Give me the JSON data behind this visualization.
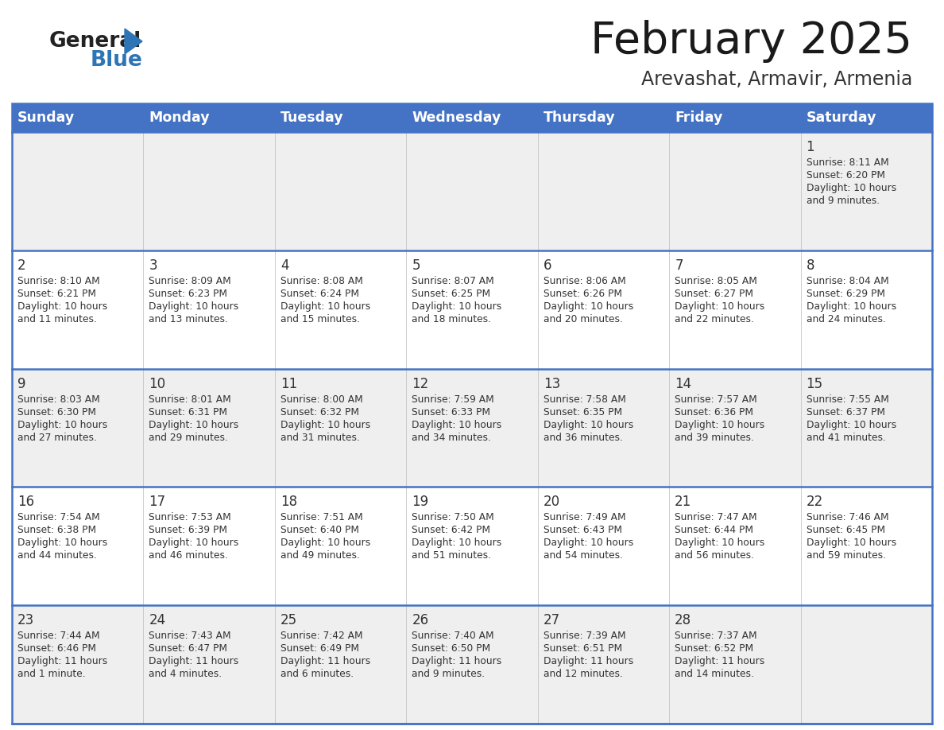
{
  "title": "February 2025",
  "subtitle": "Arevashat, Armavir, Armenia",
  "header_bg": "#4472C4",
  "header_text_color": "#FFFFFF",
  "day_names": [
    "Sunday",
    "Monday",
    "Tuesday",
    "Wednesday",
    "Thursday",
    "Friday",
    "Saturday"
  ],
  "row_bg_odd": "#EFEFEF",
  "row_bg_even": "#FFFFFF",
  "cell_text_color": "#333333",
  "day_num_color": "#333333",
  "border_color": "#4472C4",
  "logo_general_color": "#222222",
  "logo_blue_color": "#2E75B6",
  "calendar_data": [
    [
      null,
      null,
      null,
      null,
      null,
      null,
      {
        "day": 1,
        "sunrise": "8:11 AM",
        "sunset": "6:20 PM",
        "daylight": "10 hours\nand 9 minutes."
      }
    ],
    [
      {
        "day": 2,
        "sunrise": "8:10 AM",
        "sunset": "6:21 PM",
        "daylight": "10 hours\nand 11 minutes."
      },
      {
        "day": 3,
        "sunrise": "8:09 AM",
        "sunset": "6:23 PM",
        "daylight": "10 hours\nand 13 minutes."
      },
      {
        "day": 4,
        "sunrise": "8:08 AM",
        "sunset": "6:24 PM",
        "daylight": "10 hours\nand 15 minutes."
      },
      {
        "day": 5,
        "sunrise": "8:07 AM",
        "sunset": "6:25 PM",
        "daylight": "10 hours\nand 18 minutes."
      },
      {
        "day": 6,
        "sunrise": "8:06 AM",
        "sunset": "6:26 PM",
        "daylight": "10 hours\nand 20 minutes."
      },
      {
        "day": 7,
        "sunrise": "8:05 AM",
        "sunset": "6:27 PM",
        "daylight": "10 hours\nand 22 minutes."
      },
      {
        "day": 8,
        "sunrise": "8:04 AM",
        "sunset": "6:29 PM",
        "daylight": "10 hours\nand 24 minutes."
      }
    ],
    [
      {
        "day": 9,
        "sunrise": "8:03 AM",
        "sunset": "6:30 PM",
        "daylight": "10 hours\nand 27 minutes."
      },
      {
        "day": 10,
        "sunrise": "8:01 AM",
        "sunset": "6:31 PM",
        "daylight": "10 hours\nand 29 minutes."
      },
      {
        "day": 11,
        "sunrise": "8:00 AM",
        "sunset": "6:32 PM",
        "daylight": "10 hours\nand 31 minutes."
      },
      {
        "day": 12,
        "sunrise": "7:59 AM",
        "sunset": "6:33 PM",
        "daylight": "10 hours\nand 34 minutes."
      },
      {
        "day": 13,
        "sunrise": "7:58 AM",
        "sunset": "6:35 PM",
        "daylight": "10 hours\nand 36 minutes."
      },
      {
        "day": 14,
        "sunrise": "7:57 AM",
        "sunset": "6:36 PM",
        "daylight": "10 hours\nand 39 minutes."
      },
      {
        "day": 15,
        "sunrise": "7:55 AM",
        "sunset": "6:37 PM",
        "daylight": "10 hours\nand 41 minutes."
      }
    ],
    [
      {
        "day": 16,
        "sunrise": "7:54 AM",
        "sunset": "6:38 PM",
        "daylight": "10 hours\nand 44 minutes."
      },
      {
        "day": 17,
        "sunrise": "7:53 AM",
        "sunset": "6:39 PM",
        "daylight": "10 hours\nand 46 minutes."
      },
      {
        "day": 18,
        "sunrise": "7:51 AM",
        "sunset": "6:40 PM",
        "daylight": "10 hours\nand 49 minutes."
      },
      {
        "day": 19,
        "sunrise": "7:50 AM",
        "sunset": "6:42 PM",
        "daylight": "10 hours\nand 51 minutes."
      },
      {
        "day": 20,
        "sunrise": "7:49 AM",
        "sunset": "6:43 PM",
        "daylight": "10 hours\nand 54 minutes."
      },
      {
        "day": 21,
        "sunrise": "7:47 AM",
        "sunset": "6:44 PM",
        "daylight": "10 hours\nand 56 minutes."
      },
      {
        "day": 22,
        "sunrise": "7:46 AM",
        "sunset": "6:45 PM",
        "daylight": "10 hours\nand 59 minutes."
      }
    ],
    [
      {
        "day": 23,
        "sunrise": "7:44 AM",
        "sunset": "6:46 PM",
        "daylight": "11 hours\nand 1 minute."
      },
      {
        "day": 24,
        "sunrise": "7:43 AM",
        "sunset": "6:47 PM",
        "daylight": "11 hours\nand 4 minutes."
      },
      {
        "day": 25,
        "sunrise": "7:42 AM",
        "sunset": "6:49 PM",
        "daylight": "11 hours\nand 6 minutes."
      },
      {
        "day": 26,
        "sunrise": "7:40 AM",
        "sunset": "6:50 PM",
        "daylight": "11 hours\nand 9 minutes."
      },
      {
        "day": 27,
        "sunrise": "7:39 AM",
        "sunset": "6:51 PM",
        "daylight": "11 hours\nand 12 minutes."
      },
      {
        "day": 28,
        "sunrise": "7:37 AM",
        "sunset": "6:52 PM",
        "daylight": "11 hours\nand 14 minutes."
      },
      null
    ]
  ]
}
